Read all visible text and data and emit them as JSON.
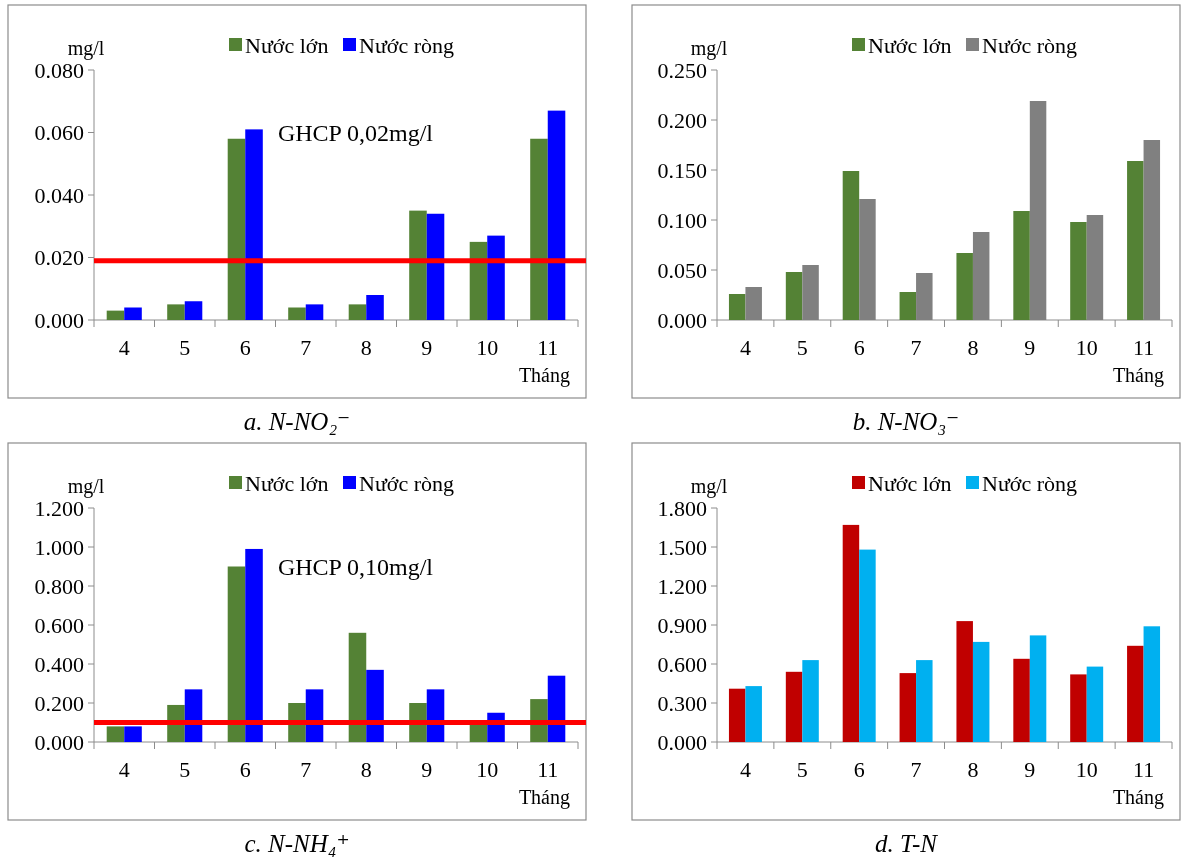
{
  "chart_data": [
    {
      "type": "bar",
      "title": "a. N-NO₂⁻",
      "ylabel": "mg/l",
      "xlabel": "Tháng",
      "categories": [
        "4",
        "5",
        "6",
        "7",
        "8",
        "9",
        "10",
        "11"
      ],
      "ylim": [
        0,
        0.08
      ],
      "yticks": [
        {
          "value": 0,
          "label": "0.000"
        },
        {
          "value": 0.02,
          "label": "0.020"
        },
        {
          "value": 0.04,
          "label": "0.040"
        },
        {
          "value": 0.06,
          "label": "0.060"
        },
        {
          "value": 0.08,
          "label": "0.080"
        }
      ],
      "legend": "top",
      "ref_lines": [
        {
          "axis": "y",
          "value": 0.019,
          "color": "#ff0000"
        }
      ],
      "annotations": [
        "GHCP 0,02mg/l"
      ],
      "series": [
        {
          "name": "Nước lớn",
          "color": "#548235",
          "values": [
            0.003,
            0.005,
            0.058,
            0.004,
            0.005,
            0.035,
            0.025,
            0.058
          ]
        },
        {
          "name": "Nước ròng",
          "color": "#0000ff",
          "values": [
            0.004,
            0.006,
            0.061,
            0.005,
            0.008,
            0.034,
            0.027,
            0.067
          ]
        }
      ]
    },
    {
      "type": "bar",
      "title": "b. N-NO₃⁻",
      "ylabel": "mg/l",
      "xlabel": "Tháng",
      "categories": [
        "4",
        "5",
        "6",
        "7",
        "8",
        "9",
        "10",
        "11"
      ],
      "ylim": [
        0,
        0.25
      ],
      "yticks": [
        {
          "value": 0,
          "label": "0.000"
        },
        {
          "value": 0.05,
          "label": "0.050"
        },
        {
          "value": 0.1,
          "label": "0.100"
        },
        {
          "value": 0.15,
          "label": "0.150"
        },
        {
          "value": 0.2,
          "label": "0.200"
        },
        {
          "value": 0.25,
          "label": "0.250"
        }
      ],
      "legend": "top",
      "series": [
        {
          "name": "Nước lớn",
          "color": "#548235",
          "values": [
            0.026,
            0.048,
            0.149,
            0.028,
            0.067,
            0.109,
            0.098,
            0.159
          ]
        },
        {
          "name": "Nước ròng",
          "color": "#808080",
          "values": [
            0.033,
            0.055,
            0.121,
            0.047,
            0.088,
            0.219,
            0.105,
            0.18
          ]
        }
      ]
    },
    {
      "type": "bar",
      "title": "c. N-NH₄⁺",
      "ylabel": "mg/l",
      "xlabel": "Tháng",
      "categories": [
        "4",
        "5",
        "6",
        "7",
        "8",
        "9",
        "10",
        "11"
      ],
      "ylim": [
        0,
        1.2
      ],
      "yticks": [
        {
          "value": 0,
          "label": "0.000"
        },
        {
          "value": 0.2,
          "label": "0.200"
        },
        {
          "value": 0.4,
          "label": "0.400"
        },
        {
          "value": 0.6,
          "label": "0.600"
        },
        {
          "value": 0.8,
          "label": "0.800"
        },
        {
          "value": 1,
          "label": "1.000"
        },
        {
          "value": 1.2,
          "label": "1.200"
        }
      ],
      "legend": "top",
      "ref_lines": [
        {
          "axis": "y",
          "value": 0.1,
          "color": "#ff0000"
        }
      ],
      "annotations": [
        "GHCP 0,10mg/l"
      ],
      "series": [
        {
          "name": "Nước lớn",
          "color": "#548235",
          "values": [
            0.08,
            0.19,
            0.9,
            0.2,
            0.56,
            0.2,
            0.1,
            0.22
          ]
        },
        {
          "name": "Nước ròng",
          "color": "#0000ff",
          "values": [
            0.08,
            0.27,
            0.99,
            0.27,
            0.37,
            0.27,
            0.15,
            0.34
          ]
        }
      ]
    },
    {
      "type": "bar",
      "title": "d. T-N",
      "ylabel": "mg/l",
      "xlabel": "Tháng",
      "categories": [
        "4",
        "5",
        "6",
        "7",
        "8",
        "9",
        "10",
        "11"
      ],
      "ylim": [
        0,
        1.8
      ],
      "yticks": [
        {
          "value": 0,
          "label": "0.000"
        },
        {
          "value": 0.3,
          "label": "0.300"
        },
        {
          "value": 0.6,
          "label": "0.600"
        },
        {
          "value": 0.9,
          "label": "0.900"
        },
        {
          "value": 1.2,
          "label": "1.200"
        },
        {
          "value": 1.5,
          "label": "1.500"
        },
        {
          "value": 1.8,
          "label": "1.800"
        }
      ],
      "legend": "top",
      "series": [
        {
          "name": "Nước lớn",
          "color": "#c00000",
          "values": [
            0.41,
            0.54,
            1.67,
            0.53,
            0.93,
            0.64,
            0.52,
            0.74
          ]
        },
        {
          "name": "Nước ròng",
          "color": "#00b0f0",
          "values": [
            0.43,
            0.63,
            1.48,
            0.63,
            0.77,
            0.82,
            0.58,
            0.89
          ]
        }
      ]
    }
  ]
}
